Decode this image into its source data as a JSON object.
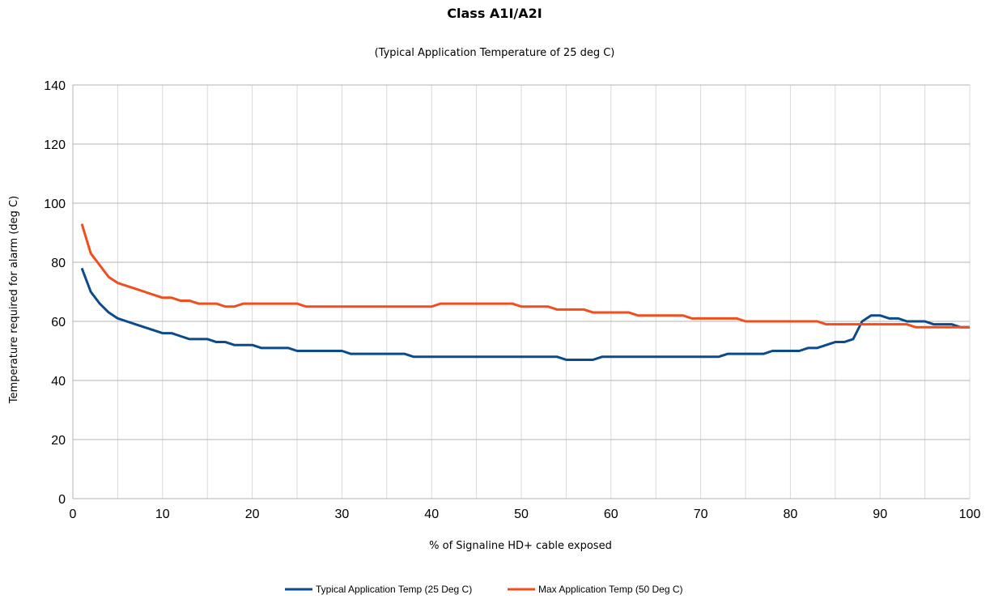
{
  "chart_data": {
    "type": "line",
    "title": "Class A1I/A2I",
    "subtitle": "(Typical Application Temperature of 25 deg C)",
    "xlabel": "% of Signaline HD+ cable exposed",
    "ylabel": "Temperature required for alarm (deg C)",
    "xlim": [
      0,
      100
    ],
    "ylim": [
      0,
      140
    ],
    "x_ticks": [
      0,
      10,
      20,
      30,
      40,
      50,
      60,
      70,
      80,
      90,
      100
    ],
    "y_ticks": [
      0,
      20,
      40,
      60,
      80,
      100,
      120,
      140
    ],
    "x_minor_gridlines": [
      5,
      15,
      25,
      35,
      45,
      55,
      65,
      75,
      85,
      95
    ],
    "grid": true,
    "legend_position": "bottom",
    "x": [
      1,
      2,
      3,
      4,
      5,
      6,
      7,
      8,
      9,
      10,
      11,
      12,
      13,
      14,
      15,
      16,
      17,
      18,
      19,
      20,
      21,
      22,
      23,
      24,
      25,
      26,
      27,
      28,
      29,
      30,
      31,
      32,
      33,
      34,
      35,
      36,
      37,
      38,
      39,
      40,
      41,
      42,
      43,
      44,
      45,
      46,
      47,
      48,
      49,
      50,
      51,
      52,
      53,
      54,
      55,
      56,
      57,
      58,
      59,
      60,
      61,
      62,
      63,
      64,
      65,
      66,
      67,
      68,
      69,
      70,
      71,
      72,
      73,
      74,
      75,
      76,
      77,
      78,
      79,
      80,
      81,
      82,
      83,
      84,
      85,
      86,
      87,
      88,
      89,
      90,
      91,
      92,
      93,
      94,
      95,
      96,
      97,
      98,
      99,
      100
    ],
    "series": [
      {
        "name": "Typical Application Temp (25 Deg C)",
        "color": "#0b4b8c",
        "values": [
          78,
          70,
          66,
          63,
          61,
          60,
          59,
          58,
          57,
          56,
          56,
          55,
          54,
          54,
          54,
          53,
          53,
          52,
          52,
          52,
          51,
          51,
          51,
          51,
          50,
          50,
          50,
          50,
          50,
          50,
          49,
          49,
          49,
          49,
          49,
          49,
          49,
          48,
          48,
          48,
          48,
          48,
          48,
          48,
          48,
          48,
          48,
          48,
          48,
          48,
          48,
          48,
          48,
          48,
          47,
          47,
          47,
          47,
          48,
          48,
          48,
          48,
          48,
          48,
          48,
          48,
          48,
          48,
          48,
          48,
          48,
          48,
          49,
          49,
          49,
          49,
          49,
          50,
          50,
          50,
          50,
          51,
          51,
          52,
          53,
          53,
          54,
          60,
          62,
          62,
          61,
          61,
          60,
          60,
          60,
          59,
          59,
          59,
          58,
          58
        ]
      },
      {
        "name": "Max Application Temp (50 Deg C)",
        "color": "#f24d1c",
        "values": [
          93,
          83,
          79,
          75,
          73,
          72,
          71,
          70,
          69,
          68,
          68,
          67,
          67,
          66,
          66,
          66,
          65,
          65,
          66,
          66,
          66,
          66,
          66,
          66,
          66,
          65,
          65,
          65,
          65,
          65,
          65,
          65,
          65,
          65,
          65,
          65,
          65,
          65,
          65,
          65,
          66,
          66,
          66,
          66,
          66,
          66,
          66,
          66,
          66,
          65,
          65,
          65,
          65,
          64,
          64,
          64,
          64,
          63,
          63,
          63,
          63,
          63,
          62,
          62,
          62,
          62,
          62,
          62,
          61,
          61,
          61,
          61,
          61,
          61,
          60,
          60,
          60,
          60,
          60,
          60,
          60,
          60,
          60,
          59,
          59,
          59,
          59,
          59,
          59,
          59,
          59,
          59,
          59,
          58,
          58,
          58,
          58,
          58,
          58,
          58
        ]
      }
    ]
  }
}
